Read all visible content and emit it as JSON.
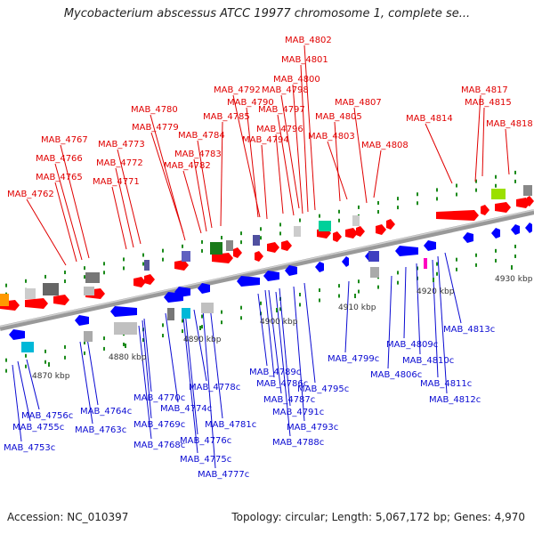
{
  "title": "Mycobacterium abscessus ATCC 19977 chromosome 1, complete se...",
  "footer": {
    "accession": "Accession: NC_010397",
    "info": "Topology: circular; Length: 5,067,172 bp; Genes: 4,970"
  },
  "ticks": [
    "4870 kbp",
    "4880 kbp",
    "4890 kbp",
    "4900 kbp",
    "4910 kbp",
    "4920 kbp",
    "4930 kbp"
  ],
  "top_labels": [
    "MAB_4802",
    "MAB_4801",
    "MAB_4800",
    "MAB_4792",
    "MAB_4798",
    "MAB_4807",
    "MAB_4817",
    "MAB_4815",
    "MAB_4780",
    "MAB_4797",
    "MAB_4805",
    "MAB_4814",
    "MAB_4818",
    "MAB_4779",
    "MAB_4785",
    "MAB_4790",
    "MAB_4796",
    "MAB_4803",
    "MAB_4767",
    "MAB_4773",
    "MAB_4784",
    "MAB_4794",
    "MAB_4808",
    "MAB_4766",
    "MAB_4783",
    "MAB_4772",
    "MAB_4782",
    "MAB_4765",
    "MAB_4771",
    "MAB_4762"
  ],
  "bottom_labels": [
    "MAB_4813c",
    "MAB_4809c",
    "MAB_4806c",
    "MAB_4810c",
    "MAB_4799c",
    "MAB_4811c",
    "MAB_4789c",
    "MAB_4812c",
    "MAB_4778c",
    "MAB_4786c",
    "MAB_4795c",
    "MAB_4770c",
    "MAB_4787c",
    "MAB_4764c",
    "MAB_4774c",
    "MAB_4791c",
    "MAB_4756c",
    "MAB_4769c",
    "MAB_4781c",
    "MAB_4793c",
    "MAB_4755c",
    "MAB_4763c",
    "MAB_4788c",
    "MAB_4768c",
    "MAB_4776c",
    "MAB_4753c",
    "MAB_4775c",
    "MAB_4777c"
  ],
  "colors": {
    "forward": "#ff0000",
    "reverse": "#0000ff",
    "forward_label": "#e00000",
    "reverse_label": "#0a0ad2",
    "backbone": "#9a9a9a",
    "tick_mark": "#1a8a1a"
  }
}
